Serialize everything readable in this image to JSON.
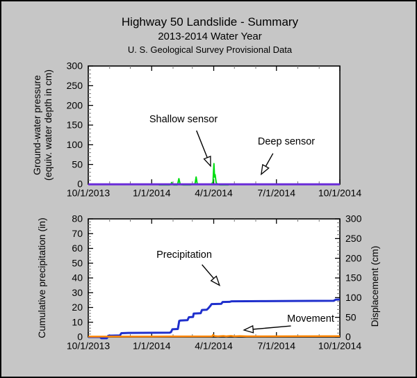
{
  "header": {
    "title": "Highway 50 Landslide - Summary",
    "subtitle": "2013-2014 Water Year",
    "provisional": "U. S. Geological Survey Provisional Data"
  },
  "colors": {
    "background": "#c6c6c6",
    "plot_background": "#ffffff",
    "axis": "#000000",
    "minor_tick": "#777777",
    "shallow_sensor": "#00dd11",
    "deep_sensor": "#6a2bd8",
    "precipitation": "#1f2fcc",
    "movement": "#ff8800"
  },
  "chart_data": [
    {
      "type": "line",
      "title": "",
      "ylabel_lines": [
        "Ground-water pressure",
        "(equiv. water depth in cm)"
      ],
      "xlabel": "",
      "x_unit": "days since 10/1/2013",
      "xlim": [
        0,
        365
      ],
      "x_major_days": [
        0,
        92,
        182,
        273,
        365
      ],
      "x_tick_labels": [
        "10/1/2013",
        "1/1/2014",
        "4/1/2014",
        "7/1/2014",
        "10/1/2014"
      ],
      "x_minor_days": [
        31,
        61,
        123,
        151,
        212,
        243,
        304,
        335
      ],
      "ylim": [
        0,
        300
      ],
      "y_major_step": 50,
      "y_minor_step": 10,
      "y_tick_labels": [
        "0",
        "50",
        "100",
        "150",
        "200",
        "250",
        "300"
      ],
      "ticks_on": [
        "left",
        "bottom",
        "top"
      ],
      "grid": false,
      "series": [
        {
          "name": "Shallow sensor",
          "color_key": "shallow_sensor",
          "axis": "left",
          "width": 2,
          "points": [
            [
              0,
              0
            ],
            [
              100,
              0
            ],
            [
              103,
              -2
            ],
            [
              118,
              -2
            ],
            [
              120,
              0
            ],
            [
              121,
              4
            ],
            [
              122,
              0
            ],
            [
              124,
              -2
            ],
            [
              129,
              -2
            ],
            [
              130,
              2
            ],
            [
              131.5,
              14
            ],
            [
              133,
              2
            ],
            [
              134,
              -1
            ],
            [
              138,
              -2
            ],
            [
              148,
              -2
            ],
            [
              152,
              0
            ],
            [
              155,
              1
            ],
            [
              156.5,
              18
            ],
            [
              158,
              1
            ],
            [
              160,
              0
            ],
            [
              170,
              0
            ],
            [
              179,
              0
            ],
            [
              181,
              6
            ],
            [
              182.3,
              52
            ],
            [
              183.2,
              18
            ],
            [
              184,
              24
            ],
            [
              185.5,
              4
            ],
            [
              187,
              0
            ],
            [
              191,
              -2
            ],
            [
              203,
              -2
            ],
            [
              206,
              0
            ],
            [
              365,
              0
            ]
          ]
        },
        {
          "name": "Deep sensor",
          "color_key": "deep_sensor",
          "axis": "left",
          "width": 3,
          "points": [
            [
              0,
              -0.5
            ],
            [
              365,
              -0.5
            ]
          ]
        }
      ],
      "annotations": [
        {
          "label": "Shallow sensor",
          "arrow_from": [
            157,
            136
          ],
          "arrow_to": [
            177.5,
            46
          ]
        },
        {
          "label": "Deep sensor",
          "arrow_from": [
            268,
            78
          ],
          "arrow_to": [
            251,
            25
          ]
        }
      ]
    },
    {
      "type": "line",
      "title": "",
      "ylabel": "Cumulative precipitation (in)",
      "y2label": "Displacement (cm)",
      "xlabel": "",
      "x_unit": "days since 10/1/2013",
      "xlim": [
        0,
        365
      ],
      "x_major_days": [
        0,
        92,
        182,
        273,
        365
      ],
      "x_tick_labels": [
        "10/1/2013",
        "1/1/2014",
        "4/1/2014",
        "7/1/2014",
        "10/1/2014"
      ],
      "x_minor_days": [
        31,
        61,
        123,
        151,
        212,
        243,
        304,
        335
      ],
      "ylim": [
        0,
        80
      ],
      "y_major_step": 10,
      "y_minor_step": 2,
      "y_tick_labels": [
        "0",
        "10",
        "20",
        "30",
        "40",
        "50",
        "60",
        "70",
        "80"
      ],
      "y2lim": [
        0,
        300
      ],
      "y2_major_step": 50,
      "y2_minor_step": 10,
      "y2_tick_labels": [
        "0",
        "50",
        "100",
        "150",
        "200",
        "250",
        "300"
      ],
      "ticks_on": [
        "left",
        "bottom",
        "top",
        "right"
      ],
      "grid": false,
      "series": [
        {
          "name": "Precipitation",
          "color_key": "precipitation",
          "axis": "left",
          "width": 3,
          "points": [
            [
              0,
              0
            ],
            [
              17,
              0
            ],
            [
              19,
              -0.8
            ],
            [
              27,
              -0.8
            ],
            [
              29,
              0.9
            ],
            [
              46,
              1.1
            ],
            [
              48,
              2.6
            ],
            [
              58,
              2.8
            ],
            [
              118,
              2.9
            ],
            [
              120,
              3.3
            ],
            [
              122,
              5.2
            ],
            [
              130,
              5.4
            ],
            [
              132,
              10.9
            ],
            [
              134,
              11.2
            ],
            [
              144,
              11.4
            ],
            [
              146,
              13.4
            ],
            [
              152,
              13.6
            ],
            [
              153,
              15.9
            ],
            [
              163,
              16.1
            ],
            [
              165,
              18.3
            ],
            [
              172,
              18.5
            ],
            [
              174,
              19.4
            ],
            [
              177,
              21.0
            ],
            [
              179,
              22.3
            ],
            [
              193,
              22.5
            ],
            [
              195,
              23.7
            ],
            [
              205,
              23.8
            ],
            [
              208,
              24.2
            ],
            [
              250,
              24.3
            ],
            [
              300,
              24.4
            ],
            [
              356,
              24.5
            ],
            [
              359,
              25.3
            ],
            [
              365,
              25.4
            ]
          ]
        },
        {
          "name": "Movement",
          "color_key": "movement",
          "axis": "right",
          "width": 2.5,
          "points": [
            [
              0,
              1
            ],
            [
              90,
              1.2
            ],
            [
              120,
              1.5
            ],
            [
              178,
              1.8
            ],
            [
              180,
              2
            ],
            [
              181,
              5.5
            ],
            [
              183,
              2.5
            ],
            [
              188,
              1.8
            ],
            [
              196,
              2.6
            ],
            [
              200,
              1.8
            ],
            [
              207,
              2.8
            ],
            [
              212,
              1.8
            ],
            [
              220,
              2.4
            ],
            [
              230,
              1.8
            ],
            [
              300,
              2
            ],
            [
              365,
              2.3
            ]
          ]
        }
      ],
      "annotations": [
        {
          "label": "Precipitation",
          "arrow_from": [
            165,
            49
          ],
          "arrow_to": [
            190.5,
            35
          ]
        },
        {
          "label": "Movement",
          "arrow_from": [
            294,
            7.5
          ],
          "arrow_to": [
            226,
            4.7
          ]
        }
      ]
    }
  ]
}
